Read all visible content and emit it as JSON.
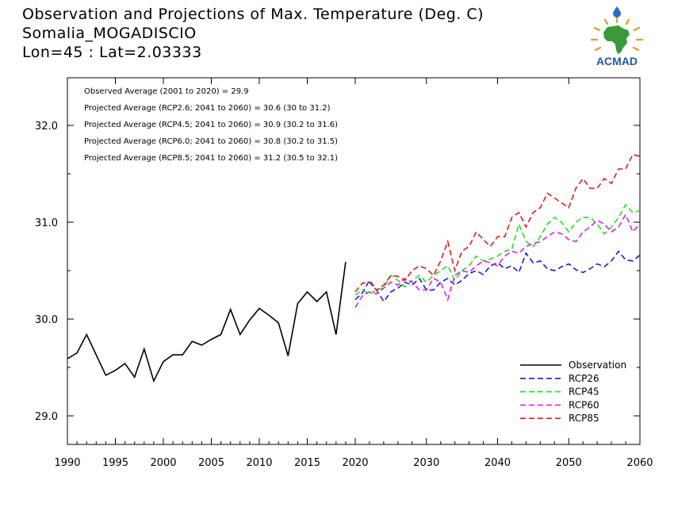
{
  "header": {
    "title": "Observation and Projections of Max. Temperature (Deg. C)",
    "location": "Somalia_MOGADISCIO",
    "coords": "Lon=45 : Lat=2.03333"
  },
  "logo": {
    "text": "ACMAD",
    "colors": {
      "africa": "#3a9a3a",
      "text": "#1e5aa8",
      "rays": "#e39a22",
      "drop": "#2a6fc2"
    }
  },
  "annotations": [
    "Observed Average (2001 to 2020) = 29.9",
    "Projected Average (RCP2.6; 2041 to 2060) = 30.6 (30 to 31.2)",
    "Projected Average (RCP4.5; 2041 to 2060) = 30.9 (30.2 to 31.6)",
    "Projected Average (RCP6.0; 2041 to 2060) = 30.8 (30.2 to 31.5)",
    "Projected Average (RCP8.5; 2041 to 2060) = 31.2 (30.5 to 32.1)"
  ],
  "chart_data": {
    "type": "line",
    "xlim": [
      1990,
      2060
    ],
    "ylim": [
      28.7,
      32.5
    ],
    "x_ticks": [
      1990,
      1995,
      2000,
      2005,
      2010,
      2015,
      2020,
      2030,
      2040,
      2050,
      2060
    ],
    "y_ticks": [
      29.0,
      30.0,
      31.0,
      32.0
    ],
    "y_tick_labels": [
      "29.0",
      "30.0",
      "31.0",
      "32.0"
    ],
    "legend_position": "bottom-right",
    "series": [
      {
        "name": "Observation",
        "color": "#000000",
        "dash": "solid",
        "x": [
          1990,
          1991,
          1992,
          1993,
          1994,
          1995,
          1996,
          1997,
          1998,
          1999,
          2000,
          2001,
          2002,
          2003,
          2004,
          2005,
          2006,
          2007,
          2008,
          2009,
          2010,
          2011,
          2012,
          2013,
          2014,
          2015,
          2016,
          2017,
          2018,
          2019
        ],
        "y": [
          29.59,
          29.65,
          29.84,
          29.63,
          29.42,
          29.47,
          29.54,
          29.4,
          29.69,
          29.36,
          29.56,
          29.63,
          29.63,
          29.77,
          29.73,
          29.79,
          29.84,
          30.1,
          29.84,
          29.99,
          30.11,
          30.04,
          29.96,
          29.62,
          30.16,
          30.28,
          30.18,
          30.28,
          29.84,
          30.59
        ]
      },
      {
        "name": "RCP26",
        "color": "#1a1adc",
        "dash": "dashed",
        "x": [
          2020,
          2021,
          2022,
          2023,
          2024,
          2025,
          2026,
          2027,
          2028,
          2029,
          2030,
          2031,
          2032,
          2033,
          2034,
          2035,
          2036,
          2037,
          2038,
          2039,
          2040,
          2041,
          2042,
          2043,
          2044,
          2045,
          2046,
          2047,
          2048,
          2049,
          2050,
          2051,
          2052,
          2053,
          2054,
          2055,
          2056,
          2057,
          2058,
          2059,
          2060
        ],
        "y": [
          30.2,
          30.27,
          30.4,
          30.3,
          30.18,
          30.28,
          30.32,
          30.38,
          30.35,
          30.42,
          30.3,
          30.3,
          30.38,
          30.42,
          30.35,
          30.4,
          30.47,
          30.5,
          30.46,
          30.55,
          30.58,
          30.52,
          30.55,
          30.48,
          30.68,
          30.58,
          30.6,
          30.52,
          30.5,
          30.54,
          30.57,
          30.51,
          30.48,
          30.52,
          30.57,
          30.54,
          30.6,
          30.7,
          30.61,
          30.6,
          30.66
        ]
      },
      {
        "name": "RCP45",
        "color": "#22e022",
        "dash": "dashed",
        "x": [
          2020,
          2021,
          2022,
          2023,
          2024,
          2025,
          2026,
          2027,
          2028,
          2029,
          2030,
          2031,
          2032,
          2033,
          2034,
          2035,
          2036,
          2037,
          2038,
          2039,
          2040,
          2041,
          2042,
          2043,
          2044,
          2045,
          2046,
          2047,
          2048,
          2049,
          2050,
          2051,
          2052,
          2053,
          2054,
          2055,
          2056,
          2057,
          2058,
          2059,
          2060
        ],
        "y": [
          30.25,
          30.3,
          30.26,
          30.3,
          30.32,
          30.45,
          30.4,
          30.33,
          30.4,
          30.45,
          30.38,
          30.45,
          30.5,
          30.55,
          30.4,
          30.5,
          30.55,
          30.65,
          30.6,
          30.62,
          30.65,
          30.7,
          30.72,
          30.98,
          30.8,
          30.75,
          30.85,
          30.98,
          31.05,
          31.0,
          30.9,
          31.0,
          31.05,
          31.05,
          30.98,
          30.88,
          30.95,
          31.05,
          31.18,
          31.1,
          31.12
        ]
      },
      {
        "name": "RCP60",
        "color": "#e21ee2",
        "dash": "dashed",
        "x": [
          2020,
          2021,
          2022,
          2023,
          2024,
          2025,
          2026,
          2027,
          2028,
          2029,
          2030,
          2031,
          2032,
          2033,
          2034,
          2035,
          2036,
          2037,
          2038,
          2039,
          2040,
          2041,
          2042,
          2043,
          2044,
          2045,
          2046,
          2047,
          2048,
          2049,
          2050,
          2051,
          2052,
          2053,
          2054,
          2055,
          2056,
          2057,
          2058,
          2059,
          2060
        ],
        "y": [
          30.12,
          30.24,
          30.28,
          30.26,
          30.32,
          30.38,
          30.35,
          30.42,
          30.38,
          30.3,
          30.3,
          30.42,
          30.38,
          30.2,
          30.45,
          30.5,
          30.48,
          30.55,
          30.6,
          30.58,
          30.55,
          30.65,
          30.7,
          30.68,
          30.75,
          30.78,
          30.8,
          30.85,
          30.9,
          30.88,
          30.82,
          30.8,
          30.9,
          30.95,
          31.02,
          30.98,
          30.9,
          30.95,
          31.08,
          30.9,
          30.98
        ]
      },
      {
        "name": "RCP85",
        "color": "#e41a1a",
        "dash": "dashed",
        "x": [
          2020,
          2021,
          2022,
          2023,
          2024,
          2025,
          2026,
          2027,
          2028,
          2029,
          2030,
          2031,
          2032,
          2033,
          2034,
          2035,
          2036,
          2037,
          2038,
          2039,
          2040,
          2041,
          2042,
          2043,
          2044,
          2045,
          2046,
          2047,
          2048,
          2049,
          2050,
          2051,
          2052,
          2053,
          2054,
          2055,
          2056,
          2057,
          2058,
          2059,
          2060
        ],
        "y": [
          30.28,
          30.37,
          30.38,
          30.3,
          30.35,
          30.45,
          30.44,
          30.4,
          30.5,
          30.55,
          30.52,
          30.45,
          30.6,
          30.8,
          30.5,
          30.7,
          30.75,
          30.9,
          30.82,
          30.75,
          30.85,
          30.85,
          31.05,
          31.1,
          30.95,
          31.1,
          31.15,
          31.3,
          31.25,
          31.2,
          31.15,
          31.35,
          31.45,
          31.35,
          31.35,
          31.45,
          31.4,
          31.55,
          31.55,
          31.7,
          31.68
        ]
      }
    ]
  }
}
